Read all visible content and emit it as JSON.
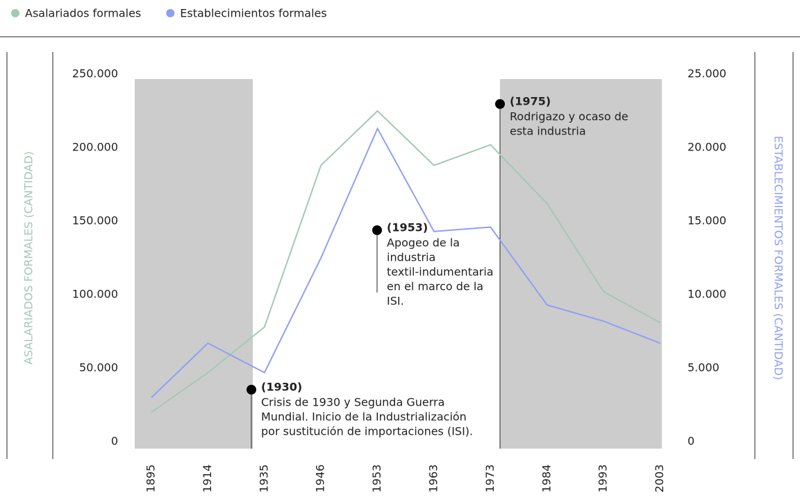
{
  "chart_data": {
    "type": "line",
    "legend_position": "top-left",
    "ylabel": "ASALARIADOS FORMALES (CANTIDAD)",
    "y2label": "ESTABLECIMIENTOS FORMALES (CANTIDAD)",
    "categories": [
      "1895",
      "1914",
      "1935",
      "1946",
      "1953",
      "1963",
      "1973",
      "1984",
      "1993",
      "2003"
    ],
    "series": [
      {
        "name": "Asalariados formales",
        "color": "#a3c9b3",
        "values": [
          20000,
          47000,
          78000,
          188000,
          225000,
          188000,
          202000,
          162000,
          102000,
          81000
        ]
      },
      {
        "name": "Establecimientos formales",
        "color": "#8f9ff5",
        "axis": "y2",
        "values": [
          3000,
          6700,
          4700,
          12500,
          21300,
          14300,
          14600,
          9300,
          8200,
          6700
        ]
      }
    ],
    "ylim": [
      0,
      250000
    ],
    "yticks": [
      0,
      {
        "value": 50000,
        "label": "50.000"
      },
      {
        "value": 100000,
        "label": "100.000"
      },
      {
        "value": 150000,
        "label": "150.000"
      },
      {
        "value": 200000,
        "label": "200.000"
      },
      {
        "value": 250000,
        "label": "250.000"
      }
    ],
    "y2lim": [
      0,
      25000
    ],
    "y2ticks": [
      0,
      {
        "value": 5000,
        "label": "5.000"
      },
      {
        "value": 10000,
        "label": "10.000"
      },
      {
        "value": 15000,
        "label": "15.000"
      },
      {
        "value": 20000,
        "label": "20.000"
      },
      {
        "value": 25000,
        "label": "25.000"
      }
    ],
    "annotations": [
      {
        "title": "(1930)",
        "lines": [
          "Crisis de 1930 y Segunda Guerra",
          "Mundial. Inicio de la Industrialización",
          "por sustitución de importaciones (ISI)."
        ]
      },
      {
        "title": "(1953)",
        "lines": [
          "Apogeo de la",
          "industria",
          "textil-indumentaria",
          "en el marco de la",
          "ISI."
        ]
      },
      {
        "title": "(1975)",
        "lines": [
          "Rodrigazo y ocaso de",
          "esta industria"
        ]
      }
    ]
  }
}
